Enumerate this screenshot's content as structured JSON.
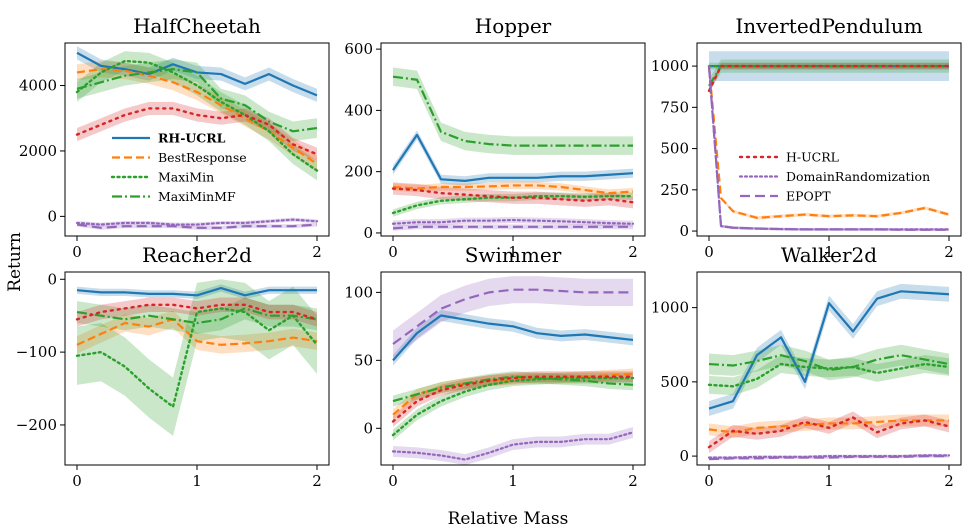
{
  "chart_data": {
    "type": "line",
    "ylabel": "Return",
    "xlabel": "Relative Mass",
    "colors": {
      "RH-UCRL": "#1f77b4",
      "BestResponse": "#ff7f0e",
      "MaxiMin": "#2ca02c",
      "MaxiMinMF": "#2ca02c",
      "H-UCRL": "#d62728",
      "DomainRandomization": "#9467bd",
      "EPOPT": "#9467bd"
    },
    "legends": [
      {
        "panel": 0,
        "entries": [
          "RH-UCRL",
          "BestResponse",
          "MaxiMin",
          "MaxiMinMF"
        ]
      },
      {
        "panel": 2,
        "entries": [
          "H-UCRL",
          "DomainRandomization",
          "EPOPT"
        ]
      }
    ],
    "panels": [
      {
        "title": "HalfCheetah",
        "xlim": [
          -0.1,
          2.1
        ],
        "ylim": [
          -600,
          5300
        ],
        "xticks": [
          0,
          1,
          2
        ],
        "xtick_labels": [
          "0",
          "1",
          "2"
        ],
        "yticks": [
          0,
          2000,
          4000
        ],
        "ytick_labels": [
          "0",
          "2000",
          "4000"
        ],
        "x": [
          0,
          0.2,
          0.4,
          0.6,
          0.8,
          1.0,
          1.2,
          1.4,
          1.6,
          1.8,
          2.0
        ],
        "series": [
          {
            "name": "RH-UCRL",
            "values": [
              5000,
              4600,
              4500,
              4350,
              4650,
              4400,
              4350,
              4050,
              4350,
              4000,
              3700
            ],
            "band": 200
          },
          {
            "name": "BestResponse",
            "values": [
              4400,
              4500,
              4450,
              4300,
              4100,
              3800,
              3400,
              3000,
              2600,
              2100,
              1600
            ],
            "band": 250
          },
          {
            "name": "MaxiMin",
            "values": [
              3800,
              4400,
              4750,
              4700,
              4400,
              4000,
              3500,
              3100,
              2600,
              1900,
              1400
            ],
            "band": 300
          },
          {
            "name": "MaxiMinMF",
            "values": [
              3900,
              4100,
              4300,
              4400,
              4500,
              4400,
              3600,
              3400,
              2900,
              2600,
              2700
            ],
            "band": 300
          },
          {
            "name": "H-UCRL",
            "values": [
              2500,
              2800,
              3100,
              3300,
              3300,
              3100,
              3000,
              3100,
              2800,
              2200,
              1900
            ],
            "band": 200
          },
          {
            "name": "DomainRandomization",
            "values": [
              -200,
              -250,
              -200,
              -200,
              -250,
              -250,
              -200,
              -200,
              -150,
              -100,
              -150
            ],
            "band": 60
          },
          {
            "name": "EPOPT",
            "values": [
              -250,
              -350,
              -300,
              -300,
              -300,
              -350,
              -350,
              -300,
              -300,
              -300,
              -250
            ],
            "band": 60
          }
        ]
      },
      {
        "title": "Hopper",
        "xlim": [
          -0.1,
          2.1
        ],
        "ylim": [
          -10,
          620
        ],
        "xticks": [
          0,
          1,
          2
        ],
        "xtick_labels": [
          "0",
          "1",
          "2"
        ],
        "yticks": [
          0,
          200,
          400,
          600
        ],
        "ytick_labels": [
          "0",
          "200",
          "400",
          "600"
        ],
        "x": [
          0,
          0.2,
          0.4,
          0.6,
          0.8,
          1.0,
          1.2,
          1.4,
          1.6,
          1.8,
          2.0
        ],
        "series": [
          {
            "name": "RH-UCRL",
            "values": [
              205,
              320,
              175,
              170,
              180,
              180,
              180,
              185,
              185,
              190,
              195
            ],
            "band": 15
          },
          {
            "name": "BestResponse",
            "values": [
              150,
              145,
              150,
              150,
              152,
              155,
              155,
              150,
              140,
              130,
              135
            ],
            "band": 12
          },
          {
            "name": "MaxiMin",
            "values": [
              65,
              90,
              105,
              110,
              115,
              115,
              120,
              120,
              118,
              120,
              120
            ],
            "band": 12
          },
          {
            "name": "MaxiMinMF",
            "values": [
              510,
              500,
              330,
              300,
              290,
              285,
              285,
              285,
              285,
              285,
              285
            ],
            "band": 30
          },
          {
            "name": "H-UCRL",
            "values": [
              145,
              140,
              130,
              125,
              120,
              115,
              115,
              110,
              105,
              110,
              100
            ],
            "band": 20
          },
          {
            "name": "DomainRandomization",
            "values": [
              30,
              35,
              35,
              40,
              40,
              42,
              40,
              38,
              35,
              32,
              30
            ],
            "band": 10
          },
          {
            "name": "EPOPT",
            "values": [
              15,
              20,
              20,
              20,
              20,
              20,
              20,
              20,
              20,
              20,
              20
            ],
            "band": 8
          }
        ]
      },
      {
        "title": "InvertedPendulum",
        "xlim": [
          -0.1,
          2.1
        ],
        "ylim": [
          -30,
          1140
        ],
        "xticks": [
          0,
          1,
          2
        ],
        "xtick_labels": [
          "0",
          "1",
          "2"
        ],
        "yticks": [
          0,
          250,
          500,
          750,
          1000
        ],
        "ytick_labels": [
          "0",
          "250",
          "500",
          "750",
          "1000"
        ],
        "x": [
          0,
          0.1,
          0.2,
          0.4,
          0.6,
          0.8,
          1.0,
          1.2,
          1.4,
          1.6,
          1.8,
          2.0
        ],
        "series": [
          {
            "name": "RH-UCRL",
            "values": [
              1000,
              1000,
              1000,
              1000,
              1000,
              1000,
              1000,
              1000,
              1000,
              1000,
              1000,
              1000
            ],
            "band": 90
          },
          {
            "name": "BestResponse",
            "values": [
              1000,
              200,
              120,
              80,
              90,
              100,
              90,
              95,
              90,
              110,
              140,
              100
            ],
            "band": 10
          },
          {
            "name": "MaxiMin",
            "values": [
              1000,
              1000,
              1000,
              1000,
              1000,
              1000,
              1000,
              1000,
              1000,
              1000,
              1000,
              1000
            ],
            "band": 20
          },
          {
            "name": "MaxiMinMF",
            "values": [
              880,
              1000,
              1000,
              1000,
              1000,
              1000,
              1000,
              1000,
              1000,
              1000,
              1000,
              1000
            ],
            "band": 40
          },
          {
            "name": "H-UCRL",
            "values": [
              850,
              1000,
              1000,
              1000,
              1000,
              1000,
              1000,
              1000,
              1000,
              1000,
              1000,
              1000
            ],
            "band": 20
          },
          {
            "name": "DomainRandomization",
            "values": [
              1000,
              30,
              20,
              15,
              12,
              10,
              10,
              10,
              10,
              10,
              10,
              10
            ],
            "band": 8
          },
          {
            "name": "EPOPT",
            "values": [
              1000,
              30,
              20,
              15,
              12,
              10,
              10,
              10,
              10,
              8,
              8,
              8
            ],
            "band": 8
          }
        ]
      },
      {
        "title": "Reacher2d",
        "xlim": [
          -0.1,
          2.1
        ],
        "ylim": [
          -255,
          10
        ],
        "xticks": [
          0,
          1,
          2
        ],
        "xtick_labels": [
          "0",
          "1",
          "2"
        ],
        "yticks": [
          0,
          -100,
          -200
        ],
        "ytick_labels": [
          "0",
          "−100",
          "−200"
        ],
        "x": [
          0,
          0.2,
          0.4,
          0.6,
          0.8,
          1.0,
          1.2,
          1.4,
          1.6,
          1.8,
          2.0
        ],
        "series": [
          {
            "name": "RH-UCRL",
            "values": [
              -15,
              -18,
              -18,
              -20,
              -20,
              -22,
              -12,
              -22,
              -15,
              -15,
              -15
            ],
            "band": 5
          },
          {
            "name": "BestResponse",
            "values": [
              -90,
              -75,
              -60,
              -65,
              -55,
              -85,
              -90,
              -88,
              -85,
              -80,
              -85
            ],
            "band": 12
          },
          {
            "name": "MaxiMin",
            "values": [
              -105,
              -100,
              -120,
              -150,
              -175,
              -45,
              -40,
              -45,
              -70,
              -50,
              -90
            ],
            "band": 40
          },
          {
            "name": "MaxiMinMF",
            "values": [
              -45,
              -50,
              -55,
              -50,
              -55,
              -60,
              -55,
              -40,
              -50,
              -50,
              -55
            ],
            "band": 15
          },
          {
            "name": "H-UCRL",
            "values": [
              -55,
              -45,
              -40,
              -35,
              -35,
              -40,
              -35,
              -35,
              -45,
              -45,
              -55
            ],
            "band": 10
          },
          {
            "name": "DomainRandomization",
            "values": [],
            "band": 0
          },
          {
            "name": "EPOPT",
            "values": [],
            "band": 0
          }
        ]
      },
      {
        "title": "Swimmer",
        "xlim": [
          -0.1,
          2.1
        ],
        "ylim": [
          -27,
          115
        ],
        "xticks": [
          0,
          1,
          2
        ],
        "xtick_labels": [
          "0",
          "1",
          "2"
        ],
        "yticks": [
          0,
          50,
          100
        ],
        "ytick_labels": [
          "0",
          "50",
          "100"
        ],
        "x": [
          0,
          0.2,
          0.4,
          0.6,
          0.8,
          1.0,
          1.2,
          1.4,
          1.6,
          1.8,
          2.0
        ],
        "series": [
          {
            "name": "RH-UCRL",
            "values": [
              50,
              70,
              83,
              80,
              77,
              75,
              70,
              68,
              69,
              67,
              65
            ],
            "band": 4
          },
          {
            "name": "BestResponse",
            "values": [
              10,
              25,
              30,
              33,
              35,
              36,
              37,
              37,
              38,
              39,
              40
            ],
            "band": 4
          },
          {
            "name": "MaxiMin",
            "values": [
              -5,
              10,
              20,
              27,
              32,
              35,
              36,
              37,
              37,
              37,
              37
            ],
            "band": 4
          },
          {
            "name": "MaxiMinMF",
            "values": [
              20,
              25,
              30,
              33,
              36,
              38,
              37,
              36,
              35,
              33,
              32
            ],
            "band": 4
          },
          {
            "name": "H-UCRL",
            "values": [
              5,
              20,
              28,
              32,
              35,
              37,
              38,
              38,
              38,
              38,
              38
            ],
            "band": 4
          },
          {
            "name": "DomainRandomization",
            "values": [
              -17,
              -18,
              -20,
              -23,
              -18,
              -12,
              -10,
              -10,
              -8,
              -8,
              -3
            ],
            "band": 4
          },
          {
            "name": "EPOPT",
            "values": [
              62,
              75,
              88,
              95,
              100,
              102,
              102,
              101,
              100,
              100,
              100
            ],
            "band": 10
          }
        ]
      },
      {
        "title": "Walker2d",
        "xlim": [
          -0.1,
          2.1
        ],
        "ylim": [
          -60,
          1240
        ],
        "xticks": [
          0,
          1,
          2
        ],
        "xtick_labels": [
          "0",
          "1",
          "2"
        ],
        "yticks": [
          0,
          500,
          1000
        ],
        "ytick_labels": [
          "0",
          "500",
          "1000"
        ],
        "x": [
          0,
          0.2,
          0.4,
          0.6,
          0.8,
          1.0,
          1.2,
          1.4,
          1.6,
          1.8,
          2.0
        ],
        "series": [
          {
            "name": "RH-UCRL",
            "values": [
              320,
              370,
              680,
              800,
              500,
              1030,
              840,
              1060,
              1110,
              1100,
              1090
            ],
            "band": 50
          },
          {
            "name": "BestResponse",
            "values": [
              180,
              160,
              190,
              200,
              210,
              220,
              220,
              230,
              240,
              240,
              240
            ],
            "band": 40
          },
          {
            "name": "MaxiMin",
            "values": [
              480,
              470,
              520,
              620,
              600,
              590,
              600,
              560,
              590,
              620,
              600
            ],
            "band": 60
          },
          {
            "name": "MaxiMinMF",
            "values": [
              620,
              610,
              640,
              680,
              640,
              580,
              600,
              650,
              680,
              650,
              620
            ],
            "band": 70
          },
          {
            "name": "H-UCRL",
            "values": [
              60,
              170,
              150,
              170,
              230,
              190,
              260,
              160,
              220,
              240,
              200
            ],
            "band": 40
          },
          {
            "name": "DomainRandomization",
            "values": [
              -10,
              -10,
              -5,
              -5,
              -5,
              0,
              0,
              0,
              0,
              5,
              5
            ],
            "band": 10
          },
          {
            "name": "EPOPT",
            "values": [
              -20,
              -15,
              -15,
              -10,
              -10,
              -10,
              -5,
              -5,
              -5,
              0,
              0
            ],
            "band": 10
          }
        ]
      }
    ]
  }
}
